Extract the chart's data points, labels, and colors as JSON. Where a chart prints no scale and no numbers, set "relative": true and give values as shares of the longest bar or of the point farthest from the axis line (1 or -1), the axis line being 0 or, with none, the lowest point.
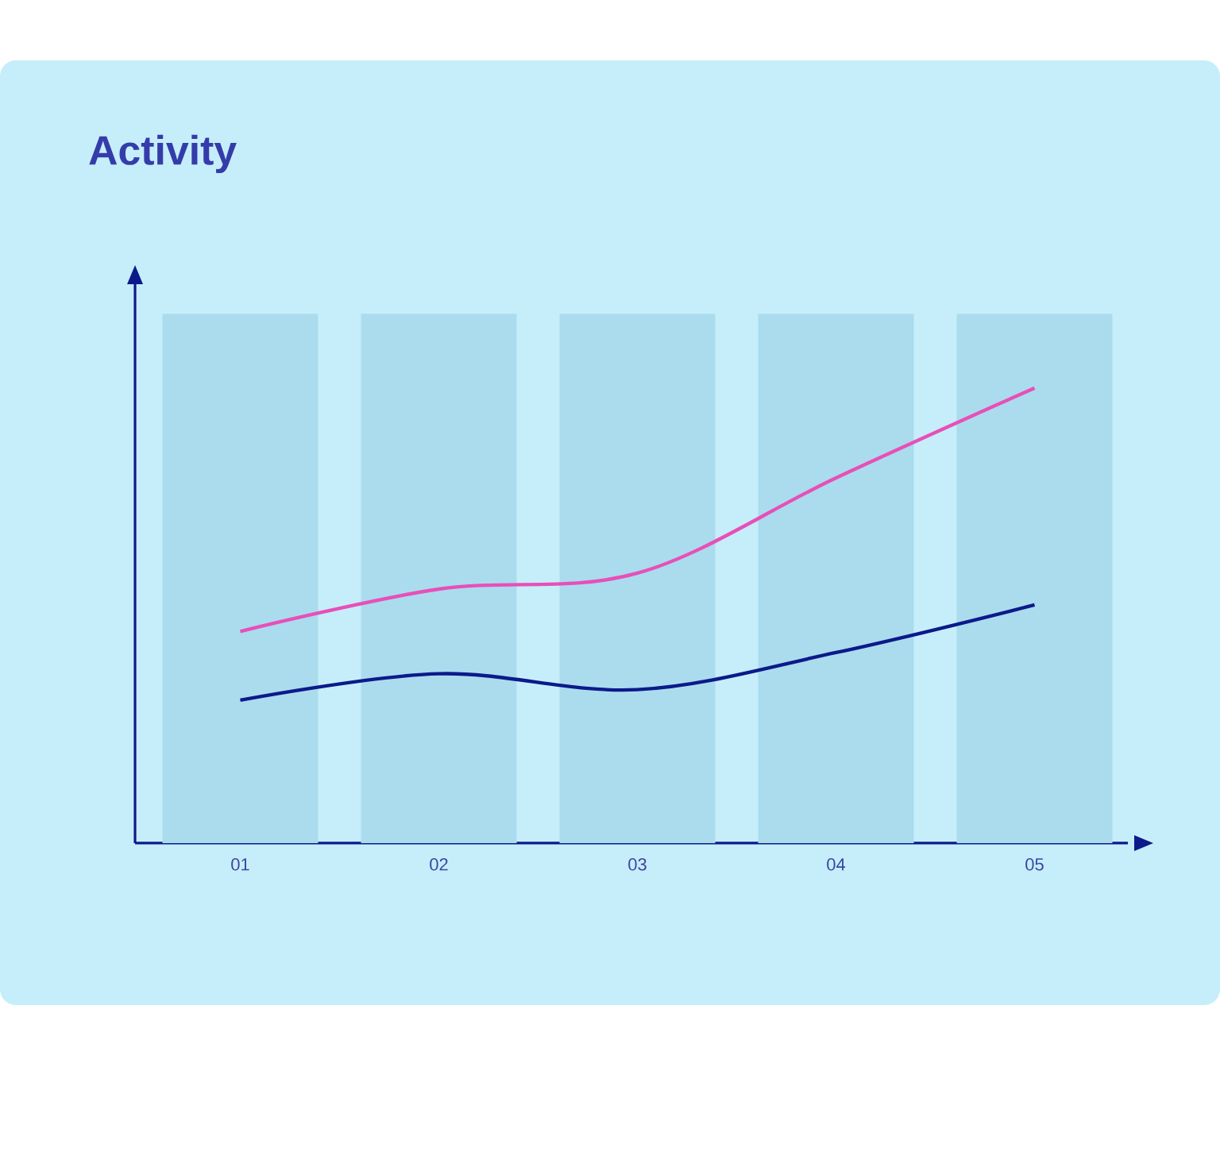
{
  "chart_data": {
    "type": "bar",
    "title": "Activity",
    "relative": true,
    "categories": [
      "01",
      "02",
      "03",
      "04",
      "05"
    ],
    "series": [
      {
        "color": "#aadcee",
        "values": [
          1,
          1,
          1,
          1,
          1
        ]
      },
      {
        "type": "line",
        "color": "#e84fb8",
        "values": [
          0.4,
          0.48,
          0.51,
          0.69,
          0.86
        ]
      },
      {
        "type": "line",
        "color": "#0c1a8a",
        "values": [
          0.27,
          0.32,
          0.29,
          0.36,
          0.45
        ]
      }
    ]
  }
}
